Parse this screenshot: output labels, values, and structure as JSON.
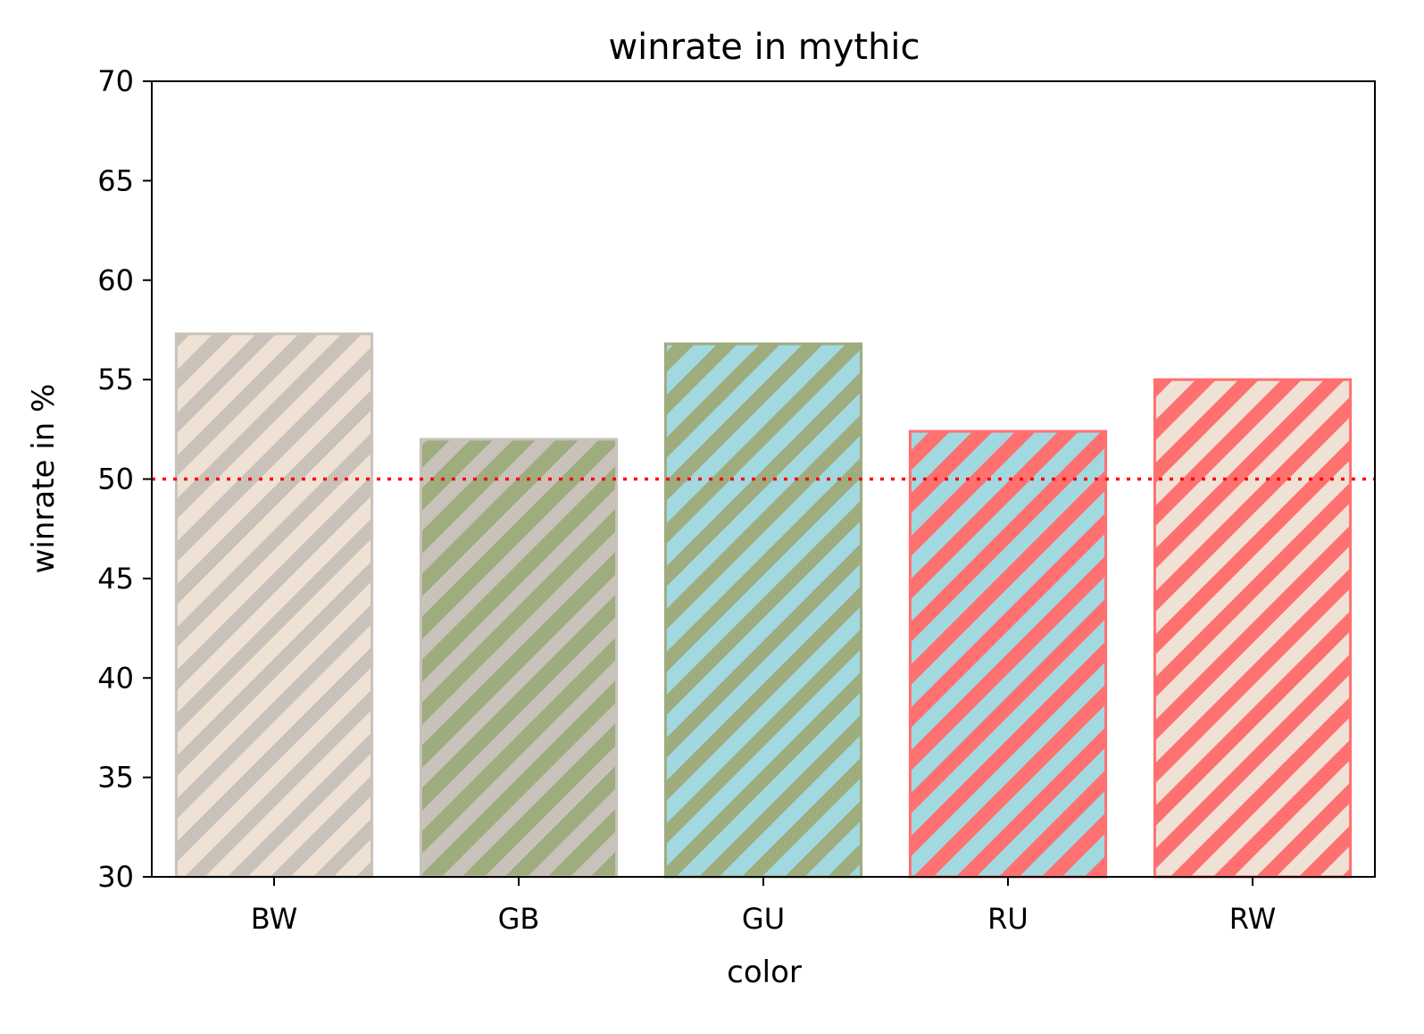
{
  "chart_data": {
    "type": "bar",
    "title": "winrate in mythic",
    "xlabel": "color",
    "ylabel": "winrate in %",
    "categories": [
      "BW",
      "GB",
      "GU",
      "RU",
      "RW"
    ],
    "values": [
      57.3,
      52.0,
      56.8,
      52.4,
      55.0
    ],
    "ylim": [
      30,
      70
    ],
    "yticks": [
      "30",
      "35",
      "40",
      "45",
      "50",
      "55",
      "60",
      "65",
      "70"
    ],
    "reference_line": {
      "y": 50,
      "style": "dotted",
      "color": "#ff0000"
    },
    "grid": false,
    "bar_styles": [
      {
        "fill": "#efe2d4",
        "stripe": "#c8c2bb",
        "edge": "#c8c2bb"
      },
      {
        "fill": "#9eac7e",
        "stripe": "#c8c2bb",
        "edge": "#c8c2bb"
      },
      {
        "fill": "#a2d8df",
        "stripe": "#9eac7e",
        "edge": "#9eac7e"
      },
      {
        "fill": "#a2d8df",
        "stripe": "#ff7070",
        "edge": "#ff7070"
      },
      {
        "fill": "#efe2d4",
        "stripe": "#ff7070",
        "edge": "#ff7070"
      }
    ]
  }
}
